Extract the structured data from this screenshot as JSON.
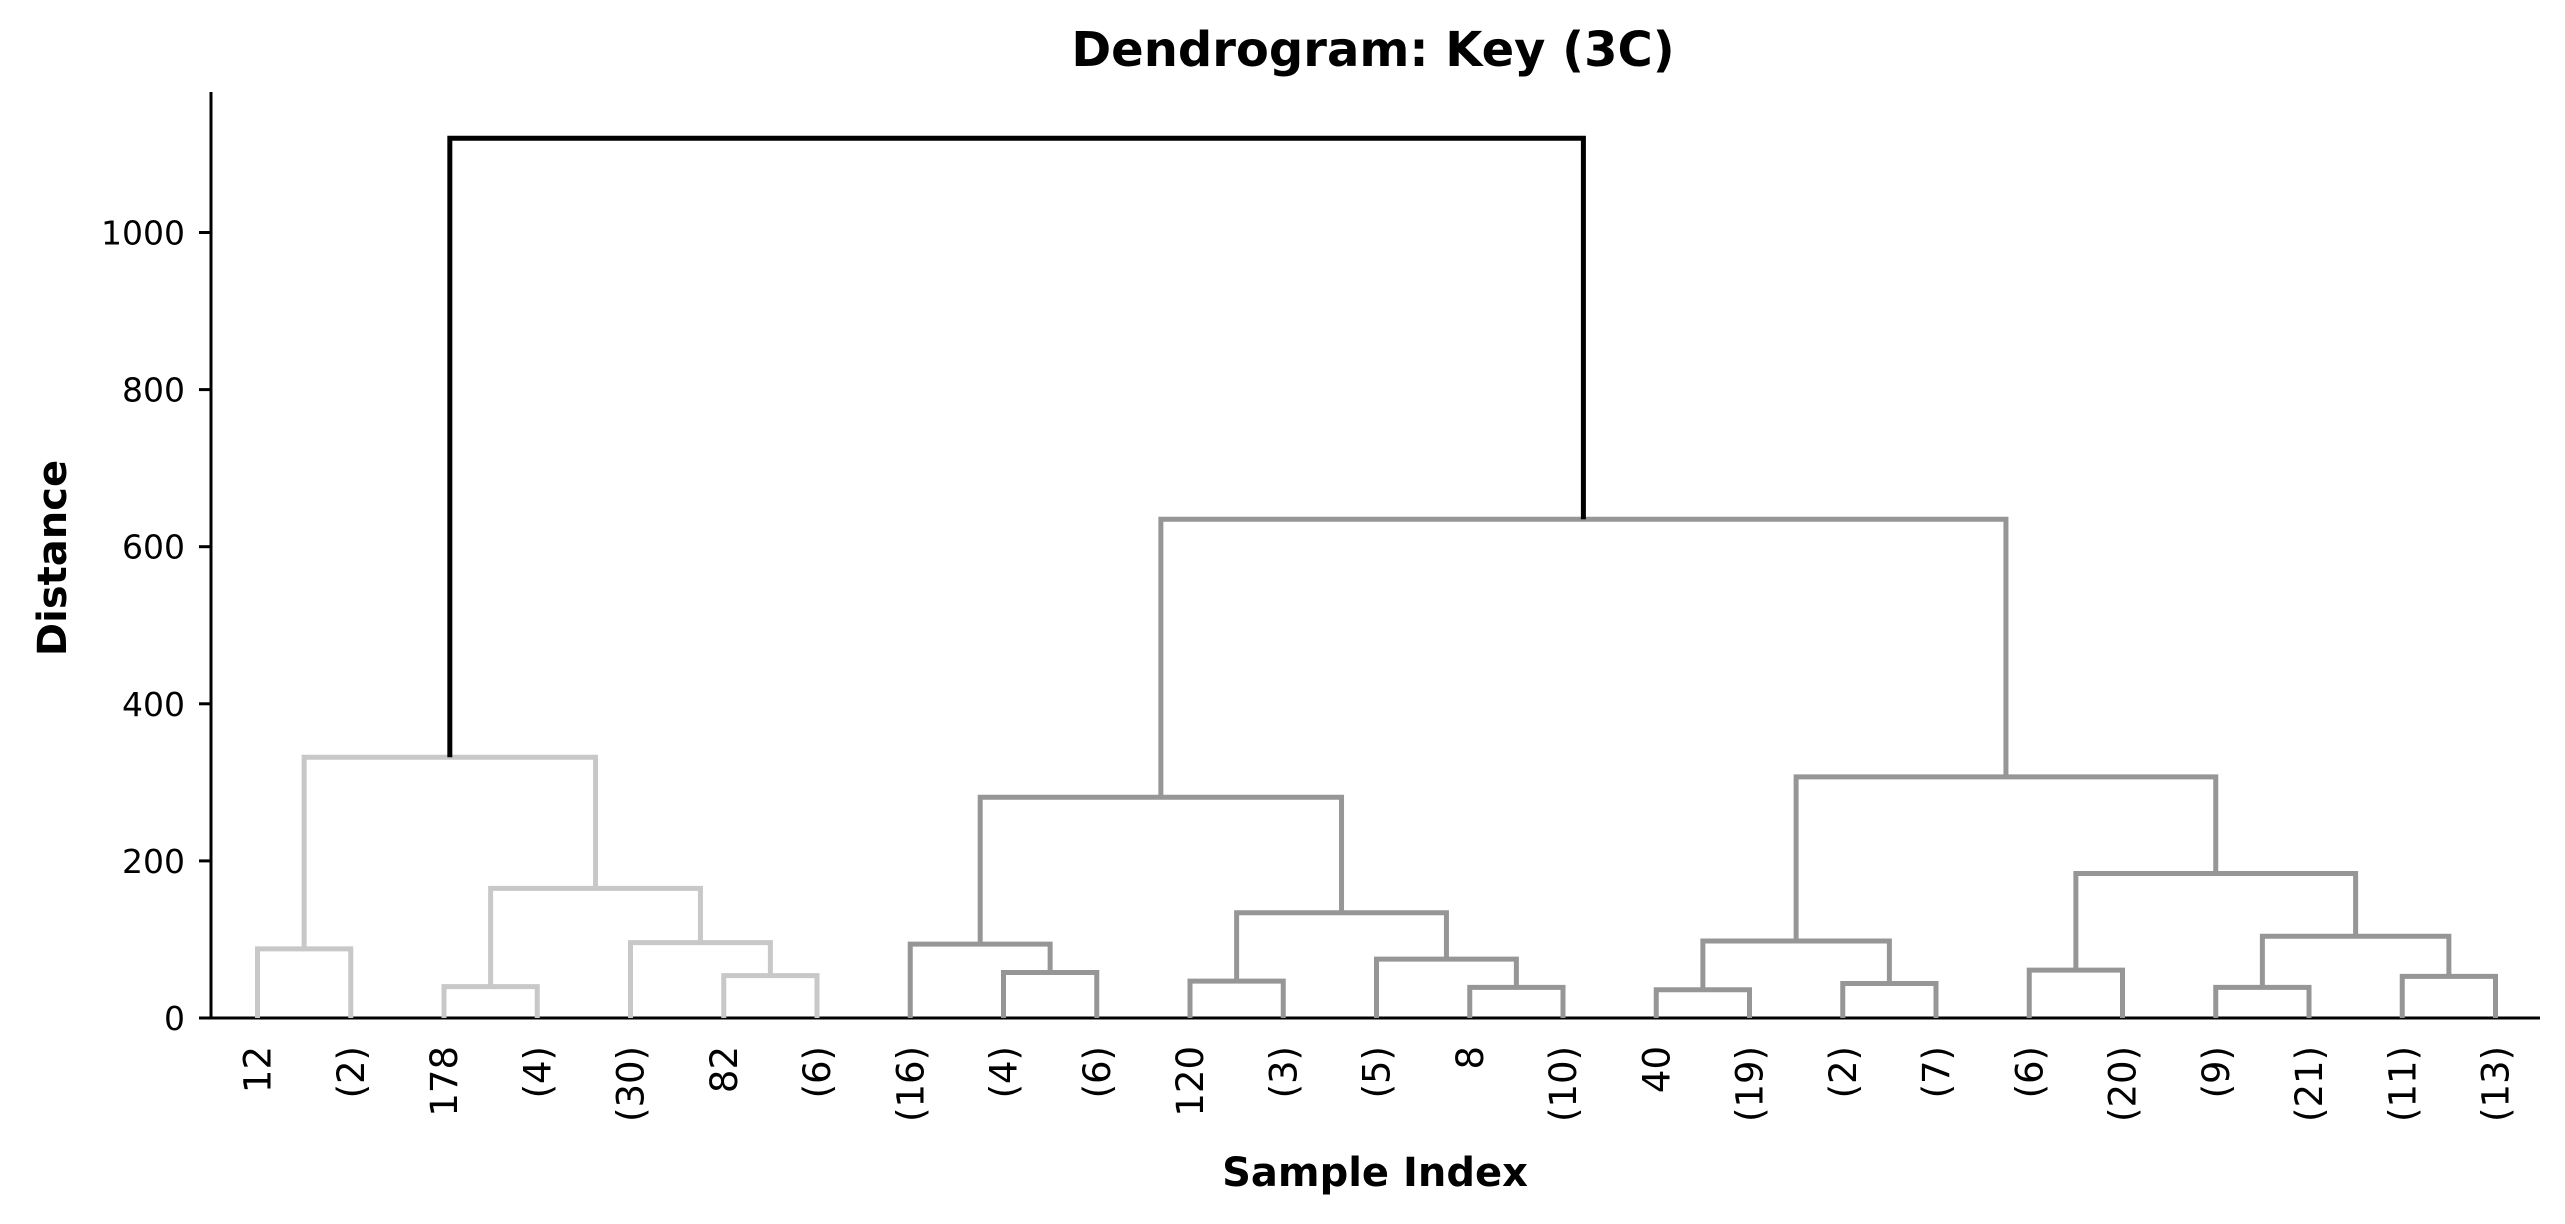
{
  "chart_data": {
    "type": "dendrogram",
    "title": "Dendrogram: Key (3C)",
    "xlabel": "Sample Index",
    "ylabel": "Distance",
    "ylim": [
      0,
      1180
    ],
    "yticks": [
      0,
      200,
      400,
      600,
      800,
      1000
    ],
    "grid": false,
    "colors": {
      "cluster_1": "#c8c8c8",
      "cluster_2": "#969696",
      "above_threshold": "#000000"
    },
    "leaves": [
      "12",
      "(2)",
      "178",
      "(4)",
      "(30)",
      "82",
      "(6)",
      "(16)",
      "(4)",
      "(6)",
      "120",
      "(3)",
      "(5)",
      "8",
      "(10)",
      "40",
      "(19)",
      "(2)",
      "(7)",
      "(6)",
      "(20)",
      "(9)",
      "(21)",
      "(11)",
      "(13)"
    ],
    "merges": [
      {
        "id": 0,
        "left": "L0",
        "right": "L1",
        "height": 88,
        "color": "cluster_1"
      },
      {
        "id": 1,
        "left": "L2",
        "right": "L3",
        "height": 40,
        "color": "cluster_1"
      },
      {
        "id": 2,
        "left": "L5",
        "right": "L6",
        "height": 54,
        "color": "cluster_1"
      },
      {
        "id": 3,
        "left": "L4",
        "right": "N2",
        "height": 96,
        "color": "cluster_1"
      },
      {
        "id": 4,
        "left": "N1",
        "right": "N3",
        "height": 165,
        "color": "cluster_1"
      },
      {
        "id": 5,
        "left": "N0",
        "right": "N4",
        "height": 332,
        "color": "cluster_1"
      },
      {
        "id": 6,
        "left": "L8",
        "right": "L9",
        "height": 58,
        "color": "cluster_2"
      },
      {
        "id": 7,
        "left": "L7",
        "right": "N6",
        "height": 94,
        "color": "cluster_2"
      },
      {
        "id": 8,
        "left": "L10",
        "right": "L11",
        "height": 47,
        "color": "cluster_2"
      },
      {
        "id": 9,
        "left": "L13",
        "right": "L14",
        "height": 39,
        "color": "cluster_2"
      },
      {
        "id": 10,
        "left": "L12",
        "right": "N9",
        "height": 75,
        "color": "cluster_2"
      },
      {
        "id": 11,
        "left": "N8",
        "right": "N10",
        "height": 134,
        "color": "cluster_2"
      },
      {
        "id": 12,
        "left": "N7",
        "right": "N11",
        "height": 281,
        "color": "cluster_2"
      },
      {
        "id": 13,
        "left": "L15",
        "right": "L16",
        "height": 36,
        "color": "cluster_2"
      },
      {
        "id": 14,
        "left": "L17",
        "right": "L18",
        "height": 44,
        "color": "cluster_2"
      },
      {
        "id": 15,
        "left": "N13",
        "right": "N14",
        "height": 98,
        "color": "cluster_2"
      },
      {
        "id": 16,
        "left": "L19",
        "right": "L20",
        "height": 61,
        "color": "cluster_2"
      },
      {
        "id": 17,
        "left": "L21",
        "right": "L22",
        "height": 39,
        "color": "cluster_2"
      },
      {
        "id": 18,
        "left": "L23",
        "right": "L24",
        "height": 53,
        "color": "cluster_2"
      },
      {
        "id": 19,
        "left": "N17",
        "right": "N18",
        "height": 104,
        "color": "cluster_2"
      },
      {
        "id": 20,
        "left": "N16",
        "right": "N19",
        "height": 184,
        "color": "cluster_2"
      },
      {
        "id": 21,
        "left": "N15",
        "right": "N20",
        "height": 307,
        "color": "cluster_2"
      },
      {
        "id": 22,
        "left": "N12",
        "right": "N21",
        "height": 635,
        "color": "cluster_2"
      },
      {
        "id": 23,
        "left": "N5",
        "right": "N22",
        "height": 1120,
        "color": "above_threshold"
      }
    ]
  }
}
